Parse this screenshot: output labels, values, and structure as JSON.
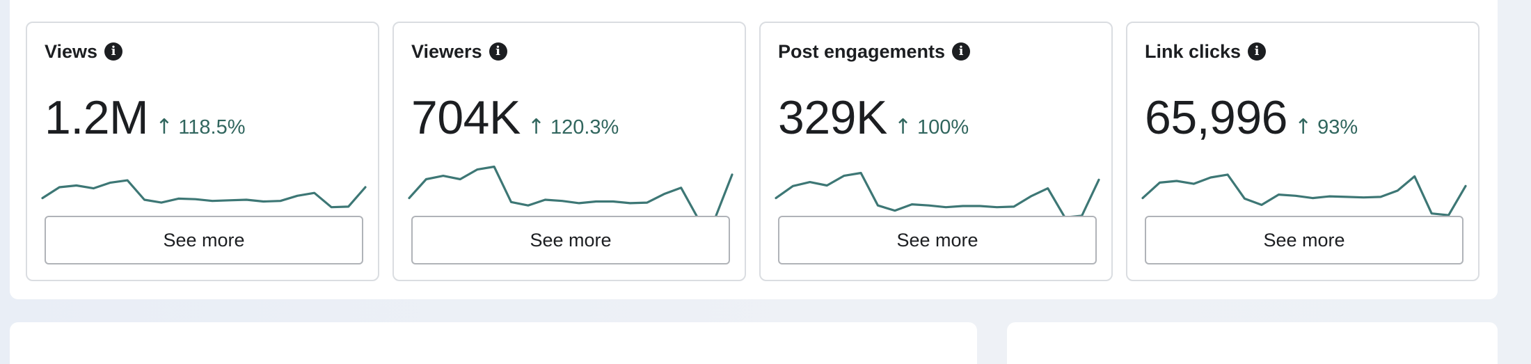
{
  "cards": [
    {
      "title": "Views",
      "value": "1.2M",
      "change": "118.5%",
      "button_label": "See more",
      "trend_color": "#31665e",
      "sparkline": [
        {
          "x": 0,
          "y": 42
        },
        {
          "x": 1,
          "y": 61
        },
        {
          "x": 2,
          "y": 64
        },
        {
          "x": 3,
          "y": 59
        },
        {
          "x": 4,
          "y": 69
        },
        {
          "x": 5,
          "y": 73
        },
        {
          "x": 6,
          "y": 39
        },
        {
          "x": 7,
          "y": 34
        },
        {
          "x": 8,
          "y": 41
        },
        {
          "x": 9,
          "y": 40
        },
        {
          "x": 10,
          "y": 37
        },
        {
          "x": 11,
          "y": 38
        },
        {
          "x": 12,
          "y": 39
        },
        {
          "x": 13,
          "y": 36
        },
        {
          "x": 14,
          "y": 37
        },
        {
          "x": 15,
          "y": 46
        },
        {
          "x": 16,
          "y": 51
        },
        {
          "x": 17,
          "y": 26
        },
        {
          "x": 18,
          "y": 27
        },
        {
          "x": 19,
          "y": 61
        }
      ]
    },
    {
      "title": "Viewers",
      "value": "704K",
      "change": "120.3%",
      "button_label": "See more",
      "trend_color": "#31665e",
      "sparkline": [
        {
          "x": 0,
          "y": 42
        },
        {
          "x": 1,
          "y": 75
        },
        {
          "x": 2,
          "y": 81
        },
        {
          "x": 3,
          "y": 75
        },
        {
          "x": 4,
          "y": 92
        },
        {
          "x": 5,
          "y": 97
        },
        {
          "x": 6,
          "y": 35
        },
        {
          "x": 7,
          "y": 29
        },
        {
          "x": 8,
          "y": 39
        },
        {
          "x": 9,
          "y": 37
        },
        {
          "x": 10,
          "y": 33
        },
        {
          "x": 11,
          "y": 36
        },
        {
          "x": 12,
          "y": 36
        },
        {
          "x": 13,
          "y": 33
        },
        {
          "x": 14,
          "y": 34
        },
        {
          "x": 15,
          "y": 49
        },
        {
          "x": 16,
          "y": 60
        },
        {
          "x": 17,
          "y": 6
        },
        {
          "x": 18,
          "y": 7
        },
        {
          "x": 19,
          "y": 83
        }
      ]
    },
    {
      "title": "Post engagements",
      "value": "329K",
      "change": "100%",
      "button_label": "See more",
      "trend_color": "#31665e",
      "sparkline": [
        {
          "x": 0,
          "y": 42
        },
        {
          "x": 1,
          "y": 63
        },
        {
          "x": 2,
          "y": 70
        },
        {
          "x": 3,
          "y": 64
        },
        {
          "x": 4,
          "y": 81
        },
        {
          "x": 5,
          "y": 86
        },
        {
          "x": 6,
          "y": 29
        },
        {
          "x": 7,
          "y": 20
        },
        {
          "x": 8,
          "y": 31
        },
        {
          "x": 9,
          "y": 29
        },
        {
          "x": 10,
          "y": 26
        },
        {
          "x": 11,
          "y": 28
        },
        {
          "x": 12,
          "y": 28
        },
        {
          "x": 13,
          "y": 26
        },
        {
          "x": 14,
          "y": 27
        },
        {
          "x": 15,
          "y": 45
        },
        {
          "x": 16,
          "y": 59
        },
        {
          "x": 17,
          "y": 8
        },
        {
          "x": 18,
          "y": 11
        },
        {
          "x": 19,
          "y": 74
        }
      ]
    },
    {
      "title": "Link clicks",
      "value": "65,996",
      "change": "93%",
      "button_label": "See more",
      "trend_color": "#31665e",
      "sparkline": [
        {
          "x": 0,
          "y": 42
        },
        {
          "x": 1,
          "y": 69
        },
        {
          "x": 2,
          "y": 72
        },
        {
          "x": 3,
          "y": 67
        },
        {
          "x": 4,
          "y": 78
        },
        {
          "x": 5,
          "y": 83
        },
        {
          "x": 6,
          "y": 41
        },
        {
          "x": 7,
          "y": 30
        },
        {
          "x": 8,
          "y": 48
        },
        {
          "x": 9,
          "y": 46
        },
        {
          "x": 10,
          "y": 42
        },
        {
          "x": 11,
          "y": 45
        },
        {
          "x": 12,
          "y": 44
        },
        {
          "x": 13,
          "y": 43
        },
        {
          "x": 14,
          "y": 44
        },
        {
          "x": 15,
          "y": 55
        },
        {
          "x": 16,
          "y": 80
        },
        {
          "x": 17,
          "y": 15
        },
        {
          "x": 18,
          "y": 12
        },
        {
          "x": 19,
          "y": 63
        }
      ]
    }
  ],
  "icons": {
    "info": "info-icon",
    "trend_up": "arrow-up-icon"
  },
  "colors": {
    "trend_positive": "#31665e",
    "sparkline": "#3d7775",
    "card_border": "#dadde1",
    "button_border": "#b0b3b8"
  }
}
